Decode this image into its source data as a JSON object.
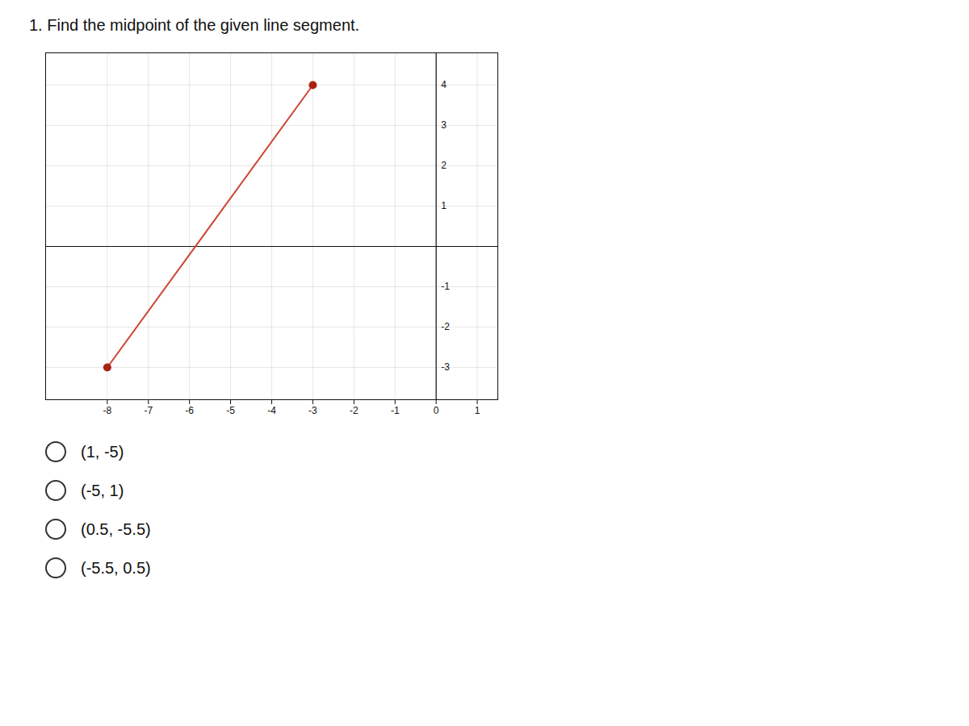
{
  "chart_data": {
    "type": "line",
    "title": "1. Find the midpoint of the given line segment.",
    "x": [
      -8,
      -3
    ],
    "values": [
      -3,
      4
    ],
    "color": "#cc4433",
    "colors": [
      "#aa2211",
      "#aa2211"
    ],
    "marker": "o",
    "xlim": [
      -9.5,
      1.5
    ],
    "ylim": [
      -3.8,
      4.8
    ],
    "xticks": [
      -8,
      -7,
      -6,
      -5,
      -4,
      -3,
      -2,
      -1,
      0,
      1
    ],
    "yticks": [
      -3,
      -2,
      -1,
      1,
      2,
      3,
      4
    ],
    "grid": true,
    "annotations": [
      "(1, -5)",
      "(-5, 1)",
      "(0.5, -5.5)",
      "(-5.5, 0.5)"
    ]
  }
}
